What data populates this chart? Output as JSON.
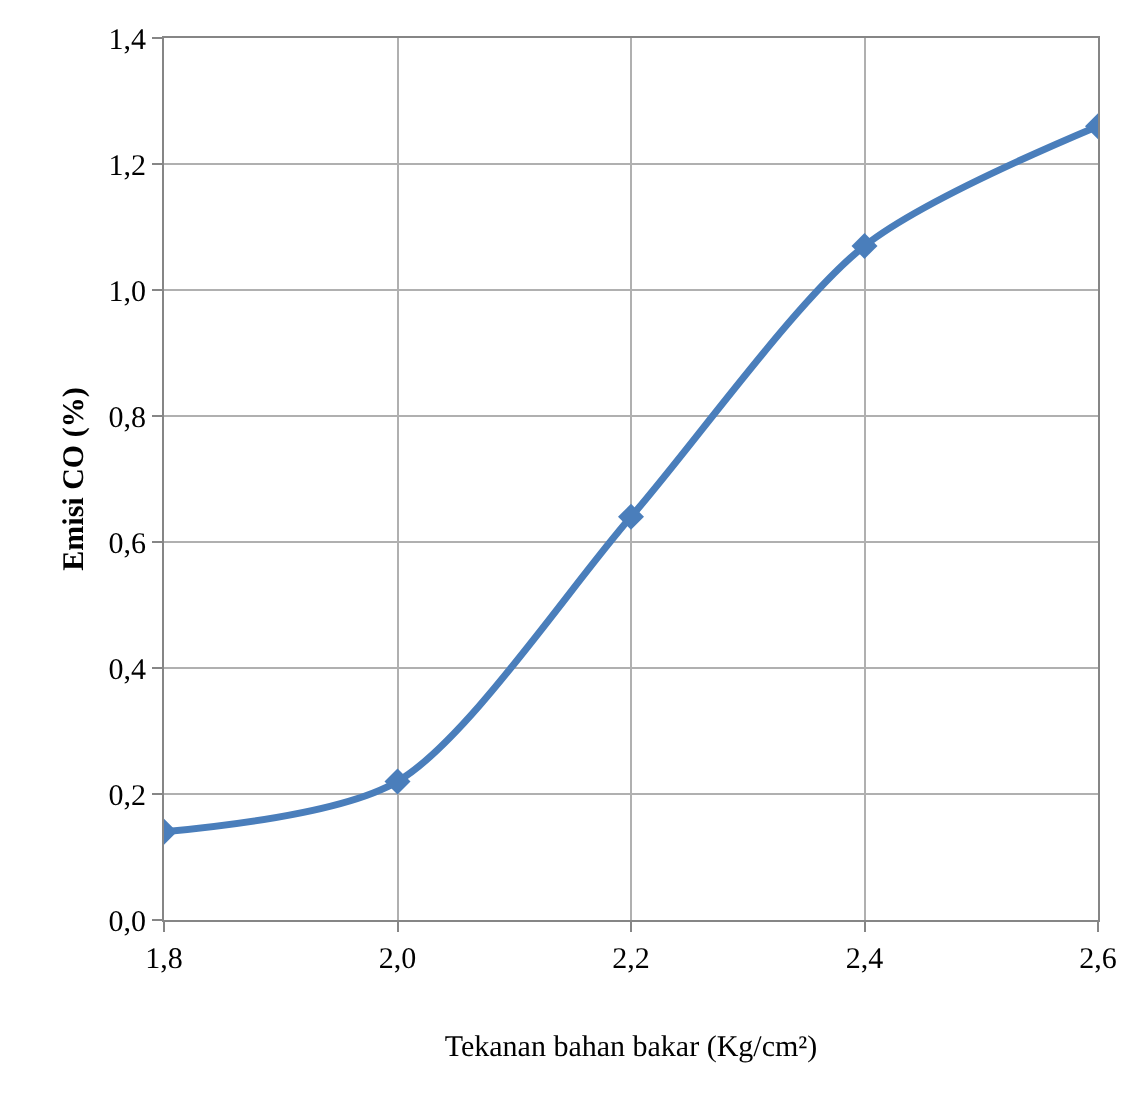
{
  "chart_data": {
    "type": "line",
    "xlabel": "Tekanan bahan bakar (Kg/cm²)",
    "ylabel": "Emisi CO (%)",
    "x": [
      1.8,
      2.0,
      2.2,
      2.4,
      2.6
    ],
    "series": [
      {
        "color": "#4a7ebb",
        "values": [
          0.14,
          0.22,
          0.64,
          1.07,
          1.26
        ]
      }
    ],
    "xlim": [
      1.8,
      2.6
    ],
    "xticks": [
      {
        "value": 1.8,
        "label": "1,8"
      },
      {
        "value": 2.0,
        "label": "2,0"
      },
      {
        "value": 2.2,
        "label": "2,2"
      },
      {
        "value": 2.4,
        "label": "2,4"
      },
      {
        "value": 2.6,
        "label": "2,6"
      }
    ],
    "ylim": [
      0,
      1.4
    ],
    "yticks": [
      {
        "value": 0,
        "label": "0,0"
      },
      {
        "value": 0.2,
        "label": "0,2"
      },
      {
        "value": 0.4,
        "label": "0,4"
      },
      {
        "value": 0.6,
        "label": "0,6"
      },
      {
        "value": 0.8,
        "label": "0,8"
      },
      {
        "value": 1.0,
        "label": "1,0"
      },
      {
        "value": 1.2,
        "label": "1,2"
      },
      {
        "value": 1.4,
        "label": "1,4"
      }
    ],
    "grid": true,
    "marker": "diamond",
    "line_style": "solid"
  }
}
